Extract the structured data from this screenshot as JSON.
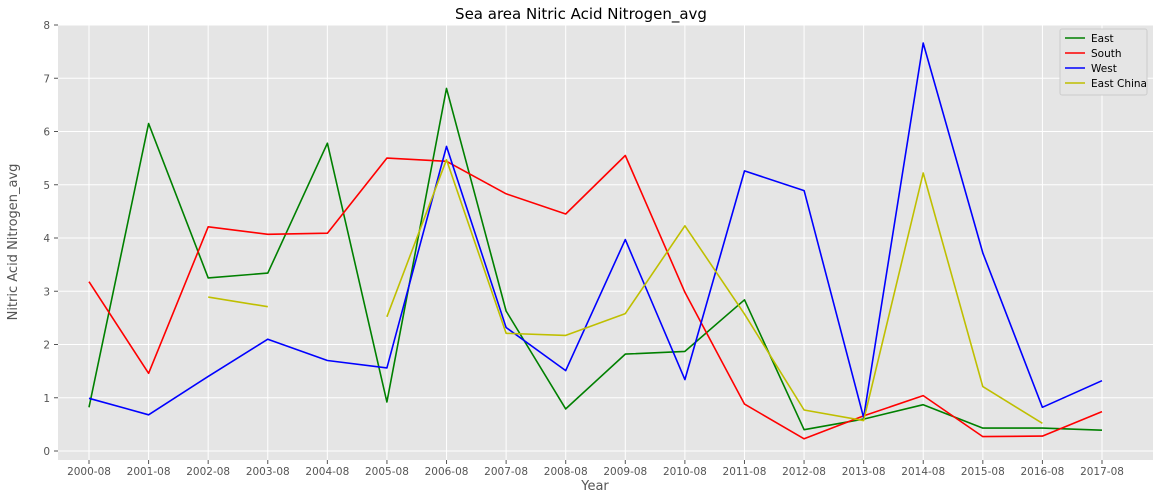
{
  "chart_data": {
    "type": "line",
    "title": "Sea area Nitric Acid Nitrogen_avg",
    "xlabel": "Year",
    "ylabel": "Nitric Acid Nitrogen_avg",
    "categories": [
      "2000-08",
      "2001-08",
      "2002-08",
      "2003-08",
      "2004-08",
      "2005-08",
      "2006-08",
      "2007-08",
      "2008-08",
      "2009-08",
      "2010-08",
      "2011-08",
      "2012-08",
      "2013-08",
      "2014-08",
      "2015-08",
      "2016-08",
      "2017-08"
    ],
    "ylim": [
      0,
      8
    ],
    "yticks": [
      0,
      1,
      2,
      3,
      4,
      5,
      6,
      7,
      8
    ],
    "grid": true,
    "legend_position": "top-right",
    "series": [
      {
        "name": "East",
        "color": "#008000",
        "values": [
          0.82,
          6.15,
          3.25,
          3.34,
          5.78,
          0.92,
          6.81,
          2.63,
          0.79,
          1.82,
          1.87,
          2.84,
          0.4,
          0.6,
          0.87,
          0.43,
          0.43,
          0.39
        ]
      },
      {
        "name": "South",
        "color": "#ff0000",
        "values": [
          3.18,
          1.46,
          4.21,
          4.07,
          4.09,
          5.5,
          5.44,
          4.83,
          4.45,
          5.55,
          2.98,
          0.88,
          0.23,
          0.66,
          1.04,
          0.27,
          0.28,
          0.74
        ]
      },
      {
        "name": "West",
        "color": "#0000ff",
        "values": [
          0.99,
          0.68,
          1.4,
          2.1,
          1.7,
          1.56,
          5.72,
          2.32,
          1.51,
          3.97,
          1.34,
          5.26,
          4.89,
          0.63,
          7.66,
          3.72,
          0.82,
          1.32
        ]
      },
      {
        "name": "East China",
        "color": "#bfbf00",
        "values": [
          null,
          null,
          2.89,
          2.71,
          null,
          2.52,
          5.47,
          2.21,
          2.17,
          2.58,
          4.23,
          2.57,
          0.77,
          0.57,
          5.22,
          1.21,
          0.52,
          null
        ]
      }
    ]
  }
}
